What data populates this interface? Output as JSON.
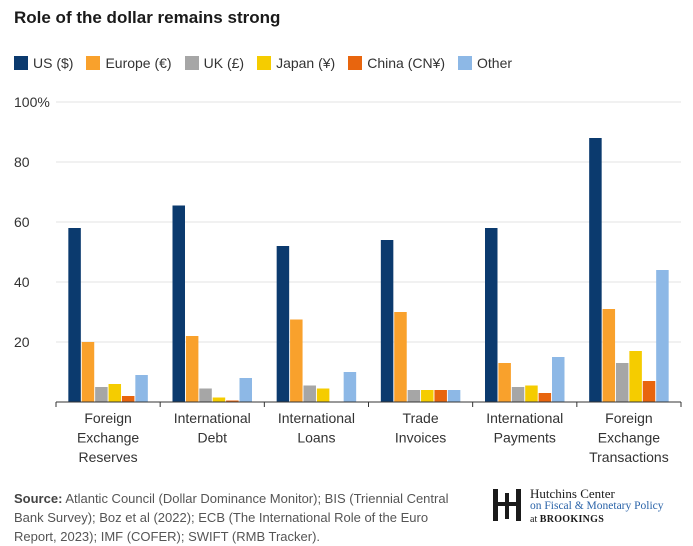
{
  "title": "Role of the dollar remains strong",
  "chart_data": {
    "type": "bar",
    "categories": [
      [
        "Foreign",
        "Exchange",
        "Reserves"
      ],
      [
        "International",
        "Debt"
      ],
      [
        "International",
        "Loans"
      ],
      [
        "Trade",
        "Invoices"
      ],
      [
        "International",
        "Payments"
      ],
      [
        "Foreign",
        "Exchange",
        "Transactions"
      ]
    ],
    "series": [
      {
        "name": "US ($)",
        "color": "#0b3a6e",
        "values": [
          58,
          65.5,
          52,
          54,
          58,
          88
        ]
      },
      {
        "name": "Europe (€)",
        "color": "#f9a12c",
        "values": [
          20,
          22,
          27.5,
          30,
          13,
          31
        ]
      },
      {
        "name": "UK (£)",
        "color": "#a6a6a6",
        "values": [
          5,
          4.5,
          5.5,
          4,
          5,
          13
        ]
      },
      {
        "name": "Japan (¥)",
        "color": "#f5cc00",
        "values": [
          6,
          1.5,
          4.5,
          4,
          5.5,
          17
        ]
      },
      {
        "name": "China (CN¥)",
        "color": "#e8650e",
        "values": [
          2,
          0.5,
          0,
          4,
          3,
          7
        ]
      },
      {
        "name": "Other",
        "color": "#8db8e6",
        "values": [
          9,
          8,
          10,
          4,
          15,
          44
        ]
      }
    ],
    "ylim": [
      0,
      100
    ],
    "yticks": [
      0,
      20,
      40,
      60,
      80,
      100
    ],
    "ytick_labels": [
      "",
      "20",
      "40",
      "60",
      "80",
      "100%"
    ],
    "grid": true,
    "legend_position": "top-left"
  },
  "source": {
    "label": "Source:",
    "text": "Atlantic Council (Dollar Dominance Monitor); BIS (Triennial Central Bank Survey); Boz et al (2022); ECB (The International Role of the Euro Report, 2023); IMF (COFER); SWIFT (RMB Tracker)."
  },
  "logo": {
    "line1": "Hutchins Center",
    "line2": "on Fiscal & Monetary Policy",
    "line3_prefix": "at",
    "line3_brand": "BROOKINGS"
  }
}
